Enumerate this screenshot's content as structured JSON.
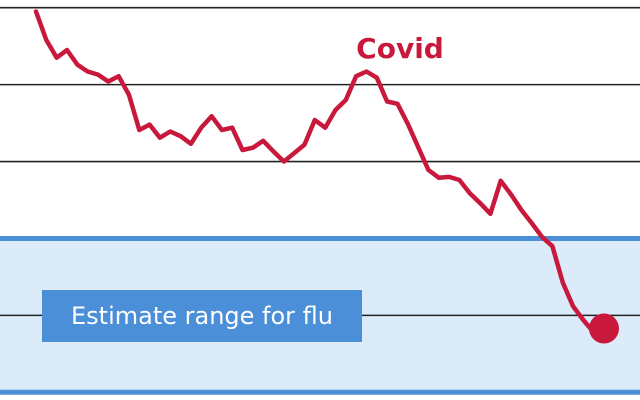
{
  "chart_data": {
    "type": "line",
    "categories": [
      null,
      null,
      null,
      null,
      null,
      null,
      null,
      null,
      null,
      null,
      null,
      null,
      null,
      null,
      null,
      null,
      null,
      null,
      null,
      null,
      null,
      null,
      null,
      null,
      null,
      null,
      null,
      null,
      null,
      null,
      null,
      null,
      null,
      null,
      null,
      null,
      null,
      null,
      null,
      null,
      null,
      null,
      null,
      null,
      null,
      null,
      null,
      null,
      null,
      null,
      null,
      null,
      null,
      null,
      null,
      null
    ],
    "series": [
      {
        "name": "Covid",
        "color": "#c8193c",
        "values": [
          4.95,
          4.58,
          4.35,
          4.45,
          4.26,
          4.17,
          4.13,
          4.04,
          4.11,
          3.87,
          3.41,
          3.48,
          3.31,
          3.39,
          3.33,
          3.23,
          3.44,
          3.59,
          3.41,
          3.44,
          3.15,
          3.18,
          3.27,
          3.13,
          3.0,
          3.11,
          3.22,
          3.54,
          3.44,
          3.67,
          3.8,
          4.11,
          4.17,
          4.09,
          3.78,
          3.75,
          3.49,
          3.19,
          2.89,
          2.79,
          2.8,
          2.76,
          2.59,
          2.46,
          2.32,
          2.75,
          2.57,
          2.37,
          2.2,
          2.02,
          1.9,
          1.43,
          1.12,
          0.94,
          0.78,
          0.83
        ]
      }
    ],
    "end_marker": true,
    "bands": [
      {
        "label": "Estimate range for flu",
        "range": [
          0,
          2
        ],
        "color": "#4a8fd8",
        "fill": "#dcebfa"
      }
    ],
    "ylim": [
      -0.1,
      5.1
    ],
    "yticks": [
      0,
      1,
      2,
      3,
      4,
      5
    ],
    "grid": true
  }
}
